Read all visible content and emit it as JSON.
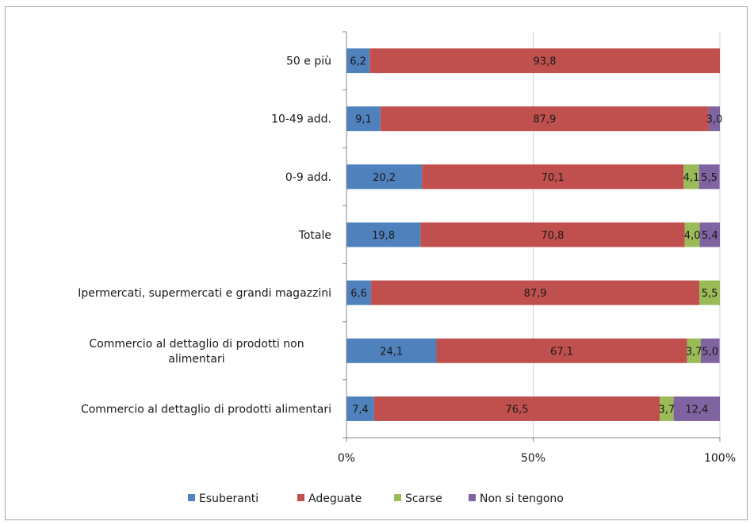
{
  "chart_data": {
    "type": "bar",
    "orientation": "horizontal",
    "stacked": true,
    "percent_stacked": true,
    "title": "",
    "xlabel": "",
    "ylabel": "",
    "xlim": [
      0,
      100
    ],
    "x_ticks": [
      "0%",
      "50%",
      "100%"
    ],
    "grid": true,
    "legend_position": "bottom",
    "categories": [
      [
        "50 e più"
      ],
      [
        "10-49 add."
      ],
      [
        "0-9 add."
      ],
      [
        "Totale"
      ],
      [
        "Ipermercati, supermercati e grandi magazzini"
      ],
      [
        "Commercio al dettaglio di prodotti non",
        "alimentari"
      ],
      [
        "Commercio al dettaglio di prodotti alimentari"
      ]
    ],
    "series": [
      {
        "name": "Esuberanti",
        "color": "#4f81bd",
        "values": [
          6.2,
          9.1,
          20.2,
          19.8,
          6.6,
          24.1,
          7.4
        ],
        "labels": [
          "6,2",
          "9,1",
          "20,2",
          "19,8",
          "6,6",
          "24,1",
          "7,4"
        ]
      },
      {
        "name": "Adeguate",
        "color": "#c0504d",
        "values": [
          93.8,
          87.9,
          70.1,
          70.8,
          87.9,
          67.1,
          76.5
        ],
        "labels": [
          "93,8",
          "87,9",
          "70,1",
          "70,8",
          "87,9",
          "67,1",
          "76,5"
        ]
      },
      {
        "name": "Scarse",
        "color": "#9bbb59",
        "values": [
          0,
          0,
          4.1,
          4.0,
          5.5,
          3.7,
          3.7
        ],
        "labels": [
          "",
          "",
          "4,1",
          "4,0",
          "5,5",
          "3,7",
          "3,7"
        ]
      },
      {
        "name": "Non si tengono",
        "color": "#8064a2",
        "values": [
          0,
          3.0,
          5.5,
          5.4,
          0,
          5.0,
          12.4
        ],
        "labels": [
          "",
          "3,0",
          "5,5",
          "5,4",
          "",
          "5,0",
          "12,4"
        ]
      }
    ]
  }
}
